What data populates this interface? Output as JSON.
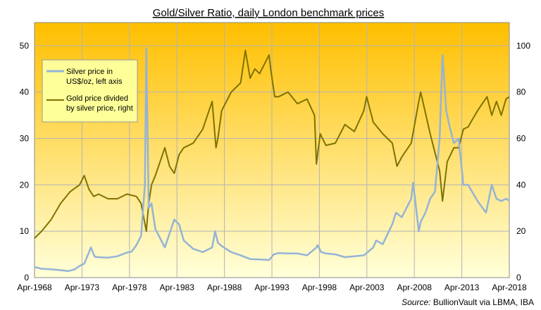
{
  "chart_data": {
    "type": "line",
    "title": "Gold/Silver Ratio, daily London benchmark prices",
    "x_tick_labels": [
      "Apr-1968",
      "Apr-1973",
      "Apr-1978",
      "Apr-1983",
      "Apr-1988",
      "Apr-1993",
      "Apr-1998",
      "Apr-2003",
      "Apr-2008",
      "Apr-2013",
      "Apr-2018"
    ],
    "x_range": [
      1968.25,
      2018.35
    ],
    "left_axis": {
      "range": [
        0,
        55
      ],
      "ticks": [
        0,
        10,
        20,
        30,
        40,
        50
      ]
    },
    "right_axis": {
      "range": [
        0,
        110
      ],
      "ticks": [
        0,
        20,
        40,
        60,
        80,
        100
      ]
    },
    "grid": true,
    "legend_position": "top-left",
    "series": [
      {
        "name": "Silver price in US$/oz, left axis",
        "axis": "left",
        "color": "#95b3d7",
        "x": [
          1968.25,
          1969.0,
          1970.0,
          1971.0,
          1971.8,
          1972.5,
          1973.0,
          1973.5,
          1974.0,
          1974.2,
          1974.6,
          1975.0,
          1976.0,
          1977.0,
          1978.0,
          1978.5,
          1979.0,
          1979.5,
          1979.9,
          1980.05,
          1980.3,
          1980.6,
          1981.0,
          1982.0,
          1982.5,
          1983.0,
          1983.5,
          1984.0,
          1985.0,
          1986.0,
          1987.0,
          1987.3,
          1987.6,
          1988.0,
          1989.0,
          1990.0,
          1991.0,
          1992.0,
          1993.0,
          1993.5,
          1994.0,
          1995.0,
          1996.0,
          1997.0,
          1998.0,
          1998.1,
          1998.5,
          1999.0,
          2000.0,
          2001.0,
          2002.0,
          2003.0,
          2004.0,
          2004.3,
          2005.0,
          2006.0,
          2006.4,
          2007.0,
          2008.0,
          2008.2,
          2008.8,
          2009.0,
          2009.5,
          2010.0,
          2010.5,
          2011.0,
          2011.3,
          2011.7,
          2012.0,
          2012.5,
          2013.0,
          2013.5,
          2014.0,
          2015.0,
          2015.9,
          2016.5,
          2017.0,
          2017.5,
          2018.0,
          2018.35
        ],
        "values": [
          2.3,
          1.9,
          1.8,
          1.6,
          1.4,
          1.8,
          2.5,
          3.0,
          5.5,
          6.5,
          4.5,
          4.4,
          4.3,
          4.6,
          5.4,
          5.6,
          7.0,
          9.0,
          20.0,
          49.5,
          15.0,
          16.0,
          10.5,
          6.5,
          9.5,
          12.5,
          11.5,
          8.0,
          6.2,
          5.5,
          6.5,
          10.0,
          7.5,
          6.8,
          5.5,
          4.8,
          4.0,
          3.9,
          3.8,
          5.0,
          5.3,
          5.2,
          5.2,
          4.8,
          6.5,
          7.0,
          5.5,
          5.2,
          5.0,
          4.4,
          4.6,
          4.8,
          6.5,
          8.0,
          7.2,
          11.5,
          14.0,
          13.0,
          17.0,
          20.5,
          10.0,
          12.0,
          14.0,
          17.0,
          18.5,
          30.0,
          48.0,
          36.0,
          33.0,
          29.0,
          30.0,
          20.0,
          20.0,
          16.5,
          14.0,
          20.0,
          17.0,
          16.5,
          17.0,
          16.6
        ]
      },
      {
        "name": "Gold price divided by silver price, right",
        "axis": "right",
        "color": "#7f7200",
        "x": [
          1968.25,
          1969.0,
          1970.0,
          1971.0,
          1972.0,
          1973.0,
          1973.5,
          1974.0,
          1974.5,
          1975.0,
          1976.0,
          1977.0,
          1978.0,
          1979.0,
          1979.5,
          1980.05,
          1980.3,
          1980.6,
          1981.0,
          1981.5,
          1982.0,
          1982.5,
          1983.0,
          1983.5,
          1984.0,
          1985.0,
          1986.0,
          1986.5,
          1987.0,
          1987.4,
          1987.6,
          1988.0,
          1989.0,
          1990.0,
          1990.5,
          1991.0,
          1991.5,
          1992.0,
          1993.0,
          1993.2,
          1993.6,
          1994.0,
          1995.0,
          1996.0,
          1997.0,
          1997.8,
          1998.0,
          1998.4,
          1999.0,
          2000.0,
          2001.0,
          2002.0,
          2003.0,
          2003.3,
          2004.0,
          2005.0,
          2006.0,
          2006.5,
          2007.0,
          2008.0,
          2008.8,
          2009.0,
          2010.0,
          2011.0,
          2011.3,
          2011.8,
          2012.5,
          2013.0,
          2013.5,
          2014.0,
          2015.0,
          2016.0,
          2016.5,
          2017.0,
          2017.5,
          2018.0,
          2018.35
        ],
        "values": [
          17,
          20,
          25,
          32,
          37,
          40,
          44,
          38,
          35,
          36,
          34,
          34,
          36,
          35,
          32,
          20,
          32,
          40,
          44,
          50,
          56,
          48,
          45,
          53,
          56,
          58,
          64,
          70,
          76,
          56,
          60,
          72,
          80,
          84,
          98,
          86,
          90,
          88,
          96,
          89,
          78,
          78,
          80,
          75,
          77,
          70,
          49,
          62,
          57,
          58,
          66,
          63,
          72,
          78,
          67,
          62,
          58,
          48,
          52,
          58,
          76,
          80,
          62,
          46,
          33,
          50,
          56,
          56,
          64,
          65,
          72,
          78,
          70,
          76,
          70,
          77,
          78
        ]
      }
    ],
    "source_label": "Source:",
    "source_text": " BullionVault via LBMA, IBA"
  },
  "colors": {
    "background_top": "#ffbf00",
    "background_bottom": "#ffffd9",
    "grid": "#b3b3b3"
  }
}
